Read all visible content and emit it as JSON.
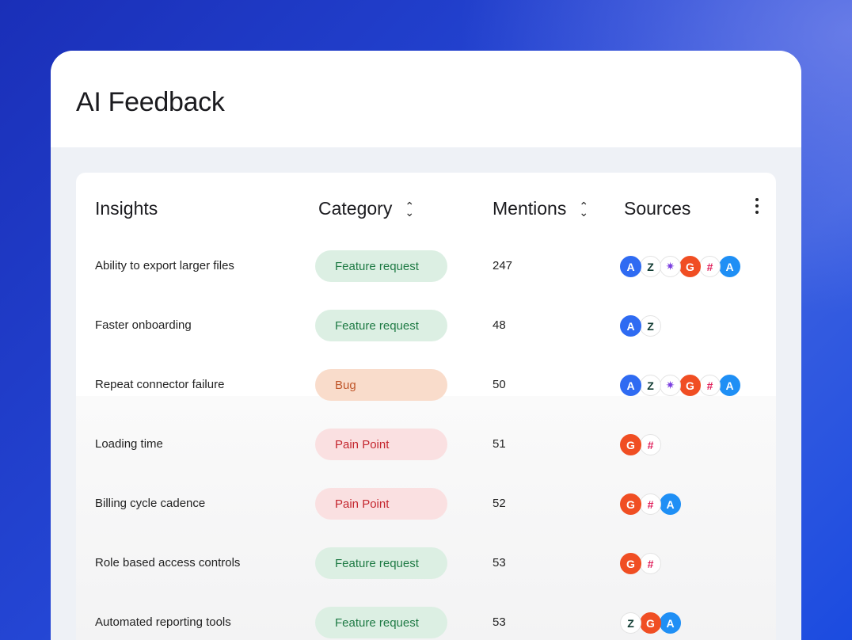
{
  "title": "AI Feedback",
  "columns": {
    "insights": "Insights",
    "category": "Category",
    "mentions": "Mentions",
    "sources": "Sources"
  },
  "category_styles": {
    "Feature request": {
      "bg": "#dcefe3",
      "fg": "#1e7a44"
    },
    "Bug": {
      "bg": "#f9dccb",
      "fg": "#c0562a"
    },
    "Pain Point": {
      "bg": "#fae0e1",
      "fg": "#c4262e"
    }
  },
  "source_icons": {
    "amplitude": {
      "glyph": "A",
      "bg": "#2f6bf2",
      "fg": "#ffffff"
    },
    "zendesk": {
      "glyph": "Z",
      "bg": "#ffffff",
      "fg": "#113c33"
    },
    "sparkle": {
      "glyph": "✷",
      "bg": "#ffffff",
      "fg": "#7b3fe0"
    },
    "g2": {
      "glyph": "G",
      "bg": "#f04e23",
      "fg": "#ffffff"
    },
    "slack": {
      "glyph": "#",
      "bg": "#ffffff",
      "fg": "#e01e5a"
    },
    "appstore": {
      "glyph": "A",
      "bg": "#1f8ff5",
      "fg": "#ffffff"
    }
  },
  "rows": [
    {
      "insight": "Ability to export larger files",
      "category": "Feature request",
      "mentions": "247",
      "sources": [
        "amplitude",
        "zendesk",
        "sparkle",
        "g2",
        "slack",
        "appstore"
      ]
    },
    {
      "insight": "Faster onboarding",
      "category": "Feature request",
      "mentions": "48",
      "sources": [
        "amplitude",
        "zendesk"
      ]
    },
    {
      "insight": "Repeat connector failure",
      "category": "Bug",
      "mentions": "50",
      "sources": [
        "amplitude",
        "zendesk",
        "sparkle",
        "g2",
        "slack",
        "appstore"
      ]
    },
    {
      "insight": "Loading time",
      "category": "Pain Point",
      "mentions": "51",
      "sources": [
        "g2",
        "slack"
      ]
    },
    {
      "insight": "Billing cycle cadence",
      "category": "Pain Point",
      "mentions": "52",
      "sources": [
        "g2",
        "slack",
        "appstore"
      ]
    },
    {
      "insight": "Role based access controls",
      "category": "Feature request",
      "mentions": "53",
      "sources": [
        "g2",
        "slack"
      ]
    },
    {
      "insight": "Automated reporting tools",
      "category": "Feature request",
      "mentions": "53",
      "sources": [
        "zendesk",
        "g2",
        "appstore"
      ]
    }
  ]
}
